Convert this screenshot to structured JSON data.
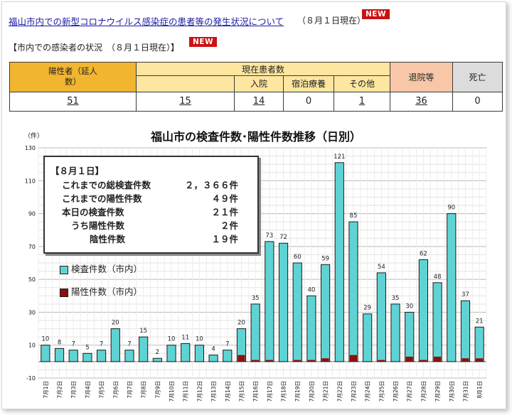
{
  "header": {
    "link_text": "福山市内での新型コロナウイルス感染症の患者等の発生状況について",
    "date_text": "（８月１日現在）",
    "badge": "NEW"
  },
  "section": {
    "title": "【市内での感染者の状況　（８月１日現在）】",
    "badge": "NEW"
  },
  "table": {
    "h_positive": "陽性者（延人数）",
    "h_current": "現在患者数",
    "h_hospital": "入院",
    "h_hotel": "宿泊療養",
    "h_other": "その他",
    "h_discharged": "退院等",
    "h_death": "死亡",
    "v_positive": "51",
    "v_current": "15",
    "v_hospital": "14",
    "v_hotel": "0",
    "v_other": "1",
    "v_discharged": "36",
    "v_death": "0"
  },
  "annotation": {
    "heading": "【８月１日】",
    "rows": [
      {
        "label": "これまでの総検査件数",
        "value": "２，３６６件"
      },
      {
        "label": "これまでの陽性件数",
        "value": "４９件"
      },
      {
        "label": "本日の検査件数",
        "value": "２１件"
      },
      {
        "label": "うち陽性件数",
        "value": "２件"
      },
      {
        "label": "陰性件数",
        "value": "１９件"
      }
    ]
  },
  "chart_data": {
    "type": "bar",
    "title": "福山市の検査件数･陽性件数推移（日別）",
    "yunit": "（件）",
    "ylim": [
      -10,
      130
    ],
    "yticks": [
      -10,
      10,
      30,
      50,
      70,
      90,
      110,
      130
    ],
    "categories": [
      "7月1日",
      "7月2日",
      "7月3日",
      "7月4日",
      "7月5日",
      "7月6日",
      "7月7日",
      "7月8日",
      "7月9日",
      "7月10日",
      "7月11日",
      "7月12日",
      "7月13日",
      "7月14日",
      "7月15日",
      "7月16日",
      "7月17日",
      "7月18日",
      "7月19日",
      "7月20日",
      "7月21日",
      "7月22日",
      "7月23日",
      "7月24日",
      "7月25日",
      "7月26日",
      "7月27日",
      "7月28日",
      "7月29日",
      "7月30日",
      "7月31日",
      "8月1日"
    ],
    "series": [
      {
        "name": "検査件数（市内）",
        "color": "#5fd3d3",
        "values": [
          10,
          8,
          7,
          5,
          7,
          20,
          7,
          15,
          2,
          10,
          11,
          10,
          4,
          7,
          20,
          35,
          73,
          72,
          60,
          40,
          59,
          121,
          85,
          29,
          54,
          35,
          30,
          62,
          48,
          90,
          37,
          21
        ]
      },
      {
        "name": "陽性件数（市内）",
        "color": "#8b1010",
        "values": [
          0,
          0,
          0,
          0,
          0,
          0,
          0,
          0,
          0,
          0,
          0,
          0,
          0,
          0,
          4,
          1,
          1,
          0,
          1,
          1,
          2,
          0,
          4,
          0,
          1,
          0,
          3,
          1,
          3,
          0,
          2,
          2
        ]
      }
    ],
    "grid": true,
    "legend": "left"
  }
}
